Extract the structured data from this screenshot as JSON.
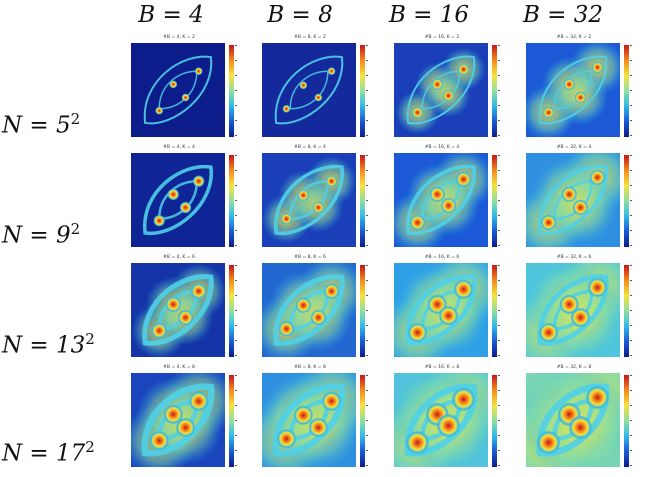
{
  "columns": [
    {
      "label": "B = 4"
    },
    {
      "label": "B = 8"
    },
    {
      "label": "B = 16"
    },
    {
      "label": "B = 32"
    }
  ],
  "rows": [
    {
      "label": "N = 5",
      "exp": "2"
    },
    {
      "label": "N = 9",
      "exp": "2"
    },
    {
      "label": "N = 13",
      "exp": "2"
    },
    {
      "label": "N = 17",
      "exp": "2"
    }
  ],
  "panels": [
    [
      "#B = 4, K = 2",
      "#B = 8, K = 2",
      "#B = 16, K = 2",
      "#B = 32, K = 2"
    ],
    [
      "#B = 4, K = 4",
      "#B = 8, K = 4",
      "#B = 16, K = 4",
      "#B = 32, K = 4"
    ],
    [
      "#B = 4, K = 6",
      "#B = 8, K = 6",
      "#B = 16, K = 6",
      "#B = 32, K = 6"
    ],
    [
      "#B = 4, K = 8",
      "#B = 8, K = 8",
      "#B = 16, K = 8",
      "#B = 32, K = 8"
    ]
  ],
  "colors": {
    "background_dark": "#0c1c8a",
    "field_mid": "#2fb8e8",
    "field_high": "#f5e23c",
    "peak": "#c8141a"
  }
}
